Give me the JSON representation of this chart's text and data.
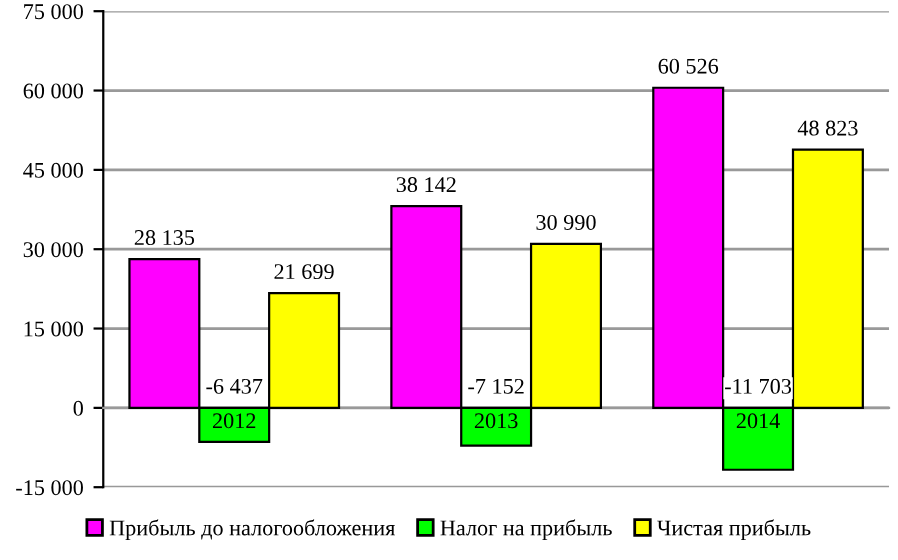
{
  "chart_data": {
    "type": "bar",
    "categories": [
      "2012",
      "2013",
      "2014"
    ],
    "series": [
      {
        "name": "Прибыль до налогообложения",
        "color": "#ff00ff",
        "values": [
          28135,
          38142,
          60526
        ],
        "value_labels": [
          "28 135",
          "38 142",
          "60 526"
        ]
      },
      {
        "name": "Налог на прибыль",
        "color": "#00ff00",
        "values": [
          -6437,
          -7152,
          -11703
        ],
        "value_labels": [
          "-6 437",
          "-7 152",
          "-11 703"
        ]
      },
      {
        "name": "Чистая прибыль",
        "color": "#ffff00",
        "values": [
          21699,
          30990,
          48823
        ],
        "value_labels": [
          "21 699",
          "30 990",
          "48 823"
        ]
      }
    ],
    "ylim": [
      -15000,
      75000
    ],
    "yticks": [
      {
        "value": -15000,
        "label": "-15 000"
      },
      0,
      {
        "value": 15000,
        "label": "15 000"
      },
      {
        "value": 30000,
        "label": "30 000"
      },
      {
        "value": 45000,
        "label": "45 000"
      },
      {
        "value": 60000,
        "label": "60 000"
      },
      {
        "value": 75000,
        "label": "75 000"
      }
    ],
    "grid": "y",
    "legend": "bottom"
  }
}
